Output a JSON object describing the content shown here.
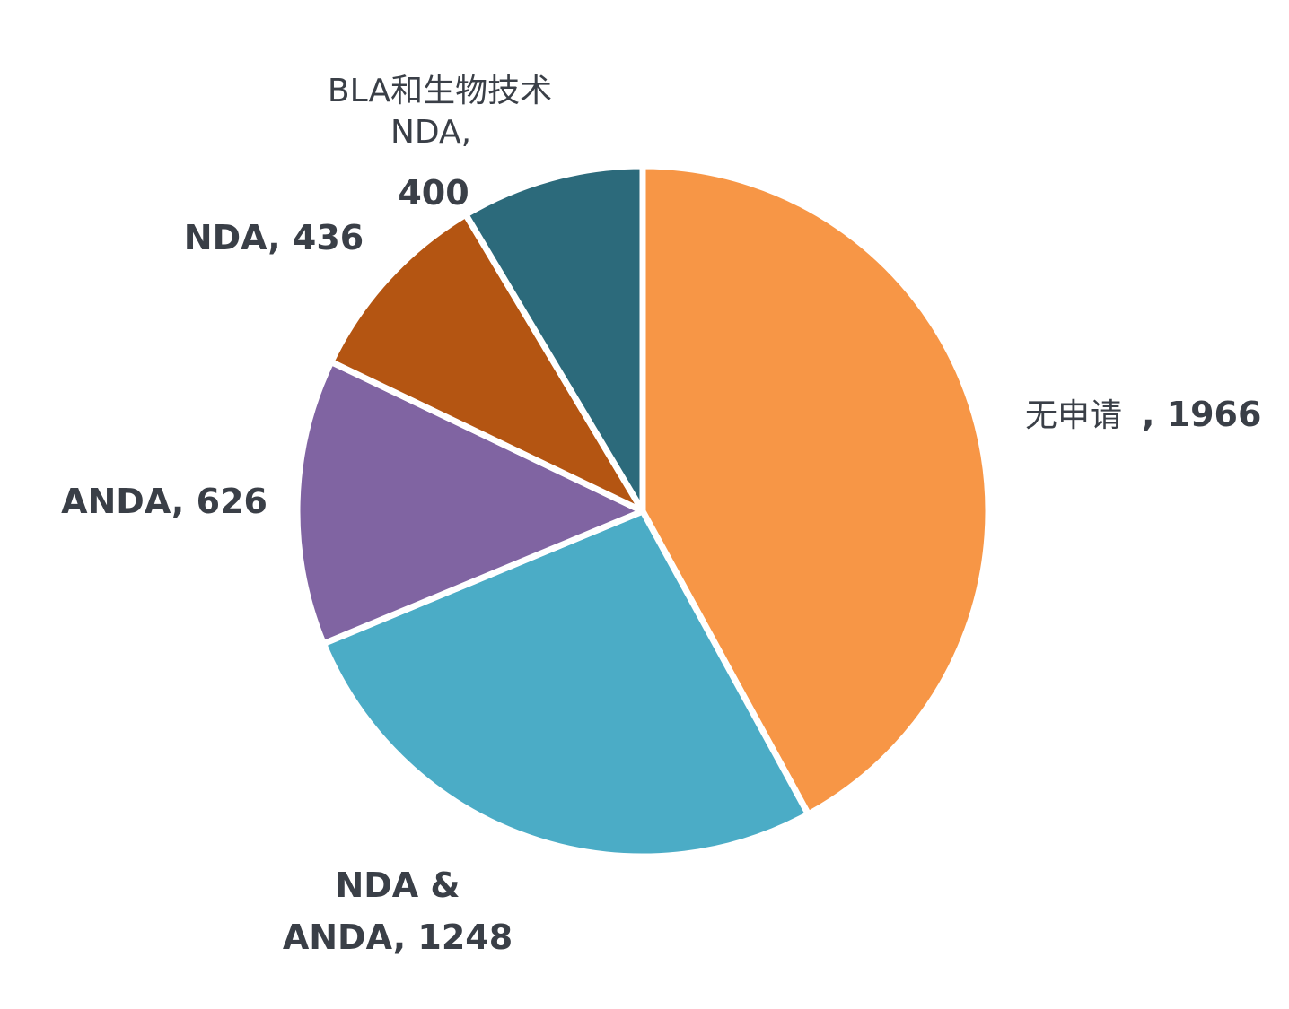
{
  "chart_data": {
    "type": "pie",
    "title": "",
    "start_angle_deg": 0,
    "direction": "clockwise",
    "slices": [
      {
        "label": "无申请",
        "value": 1966,
        "label_text": "无申请 , 1966",
        "color": "#F79646"
      },
      {
        "label": "NDA & ANDA",
        "value": 1248,
        "label_text": [
          "NDA &",
          "ANDA, 1248"
        ],
        "color": "#4BACC6"
      },
      {
        "label": "ANDA",
        "value": 626,
        "label_text": [
          "ANDA, 626"
        ],
        "color": "#8064A2"
      },
      {
        "label": "NDA",
        "value": 436,
        "label_text": [
          "NDA, 436"
        ],
        "color": "#B45512"
      },
      {
        "label": "BLA和生物技术 NDA",
        "value": 400,
        "label_text": [
          "BLA和生物技术",
          "NDA,",
          "400"
        ],
        "color": "#2C6A7B"
      }
    ],
    "separator_color": "#ffffff",
    "legend": "none"
  }
}
